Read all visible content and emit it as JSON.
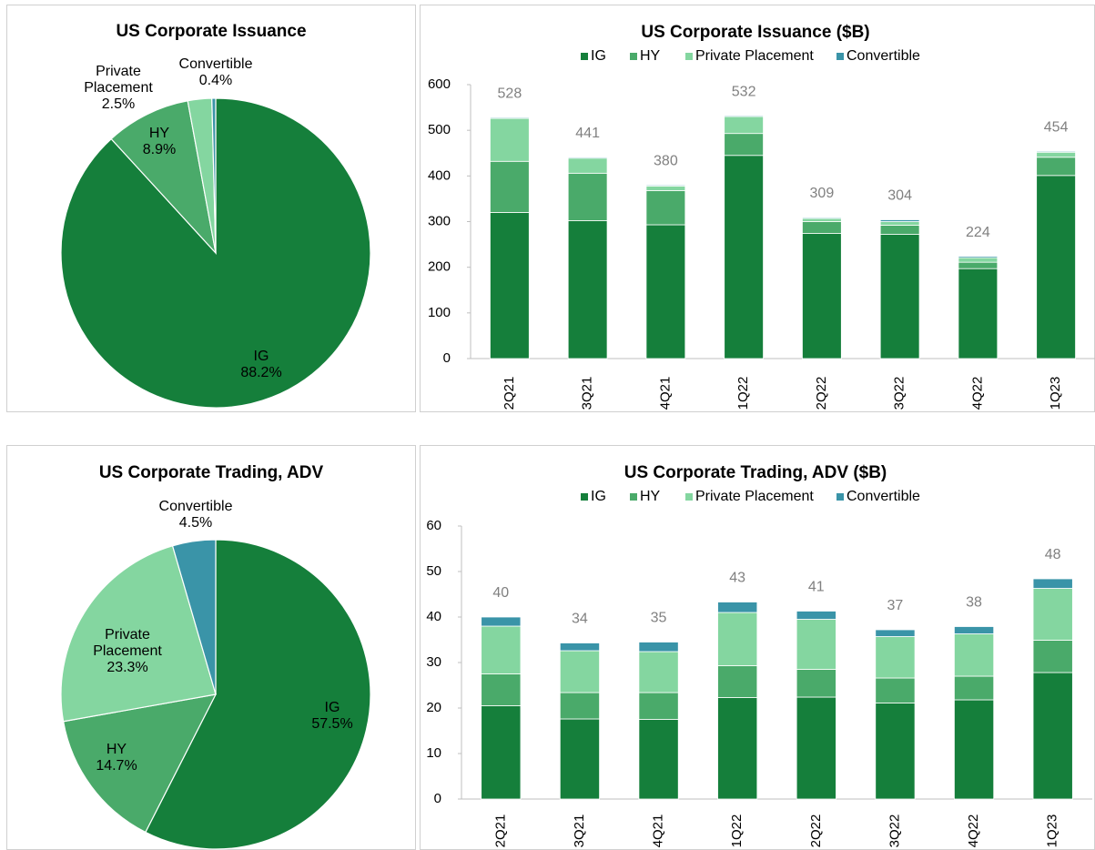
{
  "chart_data": [
    {
      "type": "pie",
      "title": "US Corporate Issuance",
      "categories": [
        "IG",
        "HY",
        "Private Placement",
        "Convertible"
      ],
      "values": [
        88.2,
        8.9,
        2.5,
        0.4
      ],
      "value_labels": [
        "88.2%",
        "8.9%",
        "2.5%",
        "0.4%"
      ],
      "colors": [
        "#157f3b",
        "#4aaa6a",
        "#84d6a0",
        "#3a94a8"
      ]
    },
    {
      "type": "bar",
      "stacked": true,
      "title": "US Corporate Issuance ($B)",
      "categories": [
        "2Q21",
        "3Q21",
        "4Q21",
        "1Q22",
        "2Q22",
        "3Q22",
        "4Q22",
        "1Q23"
      ],
      "series": [
        {
          "name": "IG",
          "color": "#157f3b",
          "values": [
            320,
            302,
            293,
            445,
            274,
            272,
            197,
            401
          ]
        },
        {
          "name": "HY",
          "color": "#4aaa6a",
          "values": [
            112,
            104,
            75,
            48,
            26,
            20,
            14,
            40
          ]
        },
        {
          "name": "Private Placement",
          "color": "#84d6a0",
          "values": [
            94,
            33,
            10,
            37,
            7,
            8,
            10,
            11
          ]
        },
        {
          "name": "Convertible",
          "color": "#3a94a8",
          "values": [
            2,
            2,
            2,
            2,
            2,
            4,
            3,
            2
          ]
        }
      ],
      "totals": [
        528,
        441,
        380,
        532,
        309,
        304,
        224,
        454
      ],
      "ylim": [
        0,
        600
      ],
      "yticks": [
        0,
        100,
        200,
        300,
        400,
        500,
        600
      ]
    },
    {
      "type": "pie",
      "title": "US Corporate Trading, ADV",
      "categories": [
        "IG",
        "HY",
        "Private Placement",
        "Convertible"
      ],
      "values": [
        57.5,
        14.7,
        23.3,
        4.5
      ],
      "value_labels": [
        "57.5%",
        "14.7%",
        "23.3%",
        "4.5%"
      ],
      "colors": [
        "#157f3b",
        "#4aaa6a",
        "#84d6a0",
        "#3a94a8"
      ]
    },
    {
      "type": "bar",
      "stacked": true,
      "title": "US Corporate Trading, ADV ($B)",
      "categories": [
        "2Q21",
        "3Q21",
        "4Q21",
        "1Q22",
        "2Q22",
        "3Q22",
        "4Q22",
        "1Q23"
      ],
      "series": [
        {
          "name": "IG",
          "color": "#157f3b",
          "values": [
            20.5,
            17.6,
            17.5,
            22.3,
            22.4,
            21.1,
            21.8,
            27.8
          ]
        },
        {
          "name": "HY",
          "color": "#4aaa6a",
          "values": [
            7,
            5.8,
            5.9,
            7,
            6.1,
            5.5,
            5.2,
            7.1
          ]
        },
        {
          "name": "Private Placement",
          "color": "#84d6a0",
          "values": [
            10.5,
            9.2,
            9,
            11.7,
            11,
            9.1,
            9.3,
            11.4
          ]
        },
        {
          "name": "Convertible",
          "color": "#3a94a8",
          "values": [
            2,
            1.7,
            2.1,
            2.3,
            1.8,
            1.5,
            1.6,
            2.1
          ]
        }
      ],
      "totals": [
        40,
        34,
        35,
        43,
        41,
        37,
        38,
        48
      ],
      "ylim": [
        0,
        60
      ],
      "yticks": [
        0,
        10,
        20,
        30,
        40,
        50,
        60
      ]
    }
  ]
}
